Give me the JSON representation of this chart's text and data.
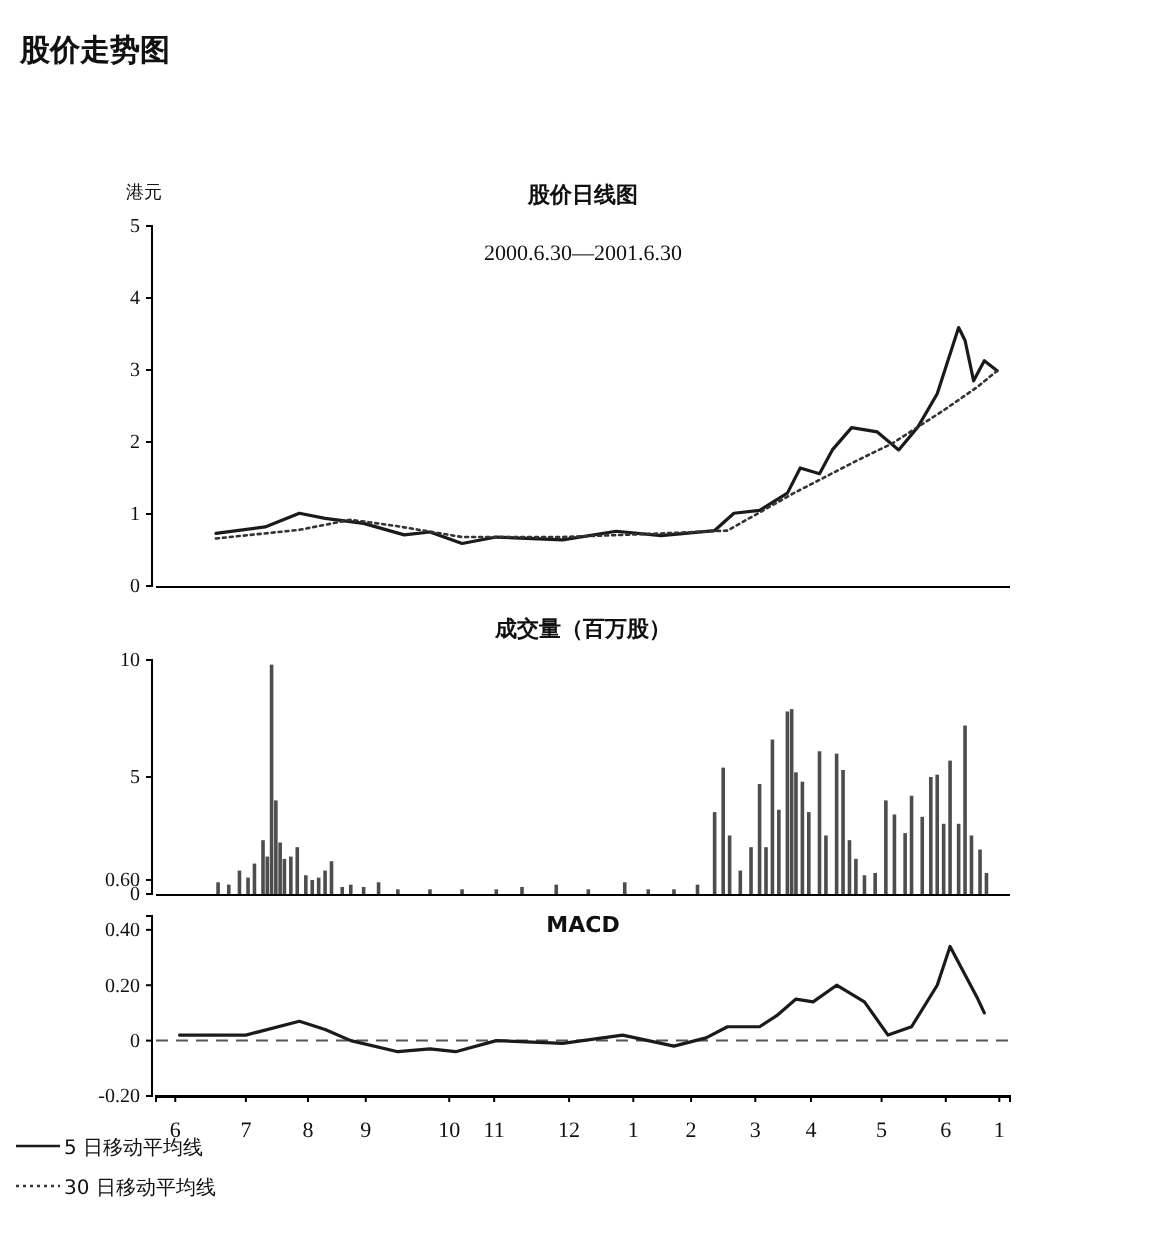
{
  "chart_data": [
    {
      "type": "line",
      "title": "股价日线图",
      "subtitle": "2000.6.30—2001.6.30",
      "ylabel": "港元",
      "annotations": [
        "股价走势图"
      ],
      "xlim": [
        "2000-06-02",
        "2001-07-06"
      ],
      "ylim": [
        0,
        5
      ],
      "yticks": [
        0,
        1,
        2,
        3,
        4,
        5
      ],
      "tick_labels": "y",
      "legend": "bottom left",
      "marker": "none",
      "grid": false,
      "series": [
        {
          "name": "5 日移动平均线",
          "color": "#1a1a1a",
          "line_style": "solid",
          "x": [
            "2000-06-30",
            "2000-07-23",
            "2000-08-08",
            "2000-08-20",
            "2000-09-07",
            "2000-09-26",
            "2000-10-08",
            "2000-10-23",
            "2000-11-08",
            "2000-12-09",
            "2001-01-03",
            "2001-01-24",
            "2001-02-18",
            "2001-02-27",
            "2001-03-11",
            "2001-03-24",
            "2001-03-30",
            "2001-04-08",
            "2001-04-14",
            "2001-04-23",
            "2001-05-05",
            "2001-05-15",
            "2001-05-24",
            "2001-06-02",
            "2001-06-12",
            "2001-06-15",
            "2001-06-19",
            "2001-06-24",
            "2001-06-30"
          ],
          "values": [
            0.73,
            0.82,
            1.01,
            0.94,
            0.87,
            0.71,
            0.75,
            0.59,
            0.68,
            0.64,
            0.76,
            0.7,
            0.77,
            1.01,
            1.05,
            1.29,
            1.64,
            1.56,
            1.89,
            2.2,
            2.14,
            1.89,
            2.21,
            2.67,
            3.59,
            3.41,
            2.85,
            3.13,
            2.99
          ]
        },
        {
          "name": "30 日移动平均线",
          "color": "#333333",
          "line_style": "dotted",
          "x": [
            "2000-06-30",
            "2000-08-08",
            "2000-09-01",
            "2000-09-23",
            "2000-10-23",
            "2000-12-09",
            "2001-01-24",
            "2001-02-24",
            "2001-03-27",
            "2001-04-26",
            "2001-05-12",
            "2001-06-05",
            "2001-06-21",
            "2001-06-30"
          ],
          "values": [
            0.66,
            0.78,
            0.92,
            0.83,
            0.68,
            0.68,
            0.73,
            0.77,
            1.29,
            1.75,
            1.98,
            2.44,
            2.77,
            2.99
          ]
        }
      ]
    },
    {
      "type": "bar",
      "title": "成交量（百万股）",
      "xlim": [
        "2000-06-02",
        "2001-07-06"
      ],
      "ylim": [
        0,
        10
      ],
      "yticks": [
        0,
        {
          "value": 0.6,
          "label": "0.60"
        },
        5,
        10
      ],
      "tick_labels": "y",
      "color": "#4d4d4d",
      "x": [
        "2000-07-01",
        "2000-07-06",
        "2000-07-11",
        "2000-07-15",
        "2000-07-18",
        "2000-07-22",
        "2000-07-24",
        "2000-07-26",
        "2000-07-28",
        "2000-07-30",
        "2000-08-01",
        "2000-08-04",
        "2000-08-07",
        "2000-08-11",
        "2000-08-14",
        "2000-08-17",
        "2000-08-20",
        "2000-08-23",
        "2000-08-28",
        "2000-09-01",
        "2000-09-07",
        "2000-09-14",
        "2000-09-23",
        "2000-10-08",
        "2000-10-23",
        "2000-11-08",
        "2000-11-20",
        "2000-12-06",
        "2000-12-21",
        "2001-01-07",
        "2001-01-18",
        "2001-01-30",
        "2001-02-10",
        "2001-02-18",
        "2001-02-22",
        "2001-02-25",
        "2001-03-02",
        "2001-03-07",
        "2001-03-11",
        "2001-03-14",
        "2001-03-17",
        "2001-03-20",
        "2001-03-24",
        "2001-03-26",
        "2001-03-28",
        "2001-03-31",
        "2001-04-03",
        "2001-04-08",
        "2001-04-11",
        "2001-04-16",
        "2001-04-19",
        "2001-04-22",
        "2001-04-25",
        "2001-04-29",
        "2001-05-04",
        "2001-05-09",
        "2001-05-13",
        "2001-05-18",
        "2001-05-21",
        "2001-05-26",
        "2001-05-30",
        "2001-06-02",
        "2001-06-05",
        "2001-06-08",
        "2001-06-12",
        "2001-06-15",
        "2001-06-18",
        "2001-06-22",
        "2001-06-25"
      ],
      "values": [
        0.5,
        0.4,
        1.0,
        0.7,
        1.3,
        2.3,
        1.6,
        9.8,
        4.0,
        2.2,
        1.5,
        1.6,
        2.0,
        0.8,
        0.6,
        0.7,
        1.0,
        1.4,
        0.3,
        0.4,
        0.3,
        0.5,
        0.2,
        0.2,
        0.2,
        0.2,
        0.3,
        0.4,
        0.2,
        0.5,
        0.2,
        0.2,
        0.4,
        3.5,
        5.4,
        2.5,
        1.0,
        2.0,
        4.7,
        2.0,
        6.6,
        3.6,
        7.8,
        7.9,
        5.2,
        4.8,
        3.5,
        6.1,
        2.5,
        6.0,
        5.3,
        2.3,
        1.5,
        0.8,
        0.9,
        4.0,
        3.4,
        2.6,
        4.2,
        3.3,
        5.0,
        5.1,
        3.0,
        5.7,
        3.0,
        7.2,
        2.5,
        1.9,
        0.9
      ]
    },
    {
      "type": "line",
      "title": "MACD",
      "xlim": [
        "2000-06-02",
        "2001-07-06"
      ],
      "ylim": [
        -0.2,
        0.45
      ],
      "yticks": [
        {
          "value": -0.2,
          "label": "-0.20"
        },
        0,
        {
          "value": 0.2,
          "label": "0.20"
        },
        {
          "value": 0.4,
          "label": "0.40"
        }
      ],
      "xticks": [
        {
          "value": "2000-06-11",
          "label": "6"
        },
        {
          "value": "2000-07-14",
          "label": "7"
        },
        {
          "value": "2000-08-12",
          "label": "8"
        },
        {
          "value": "2000-09-08",
          "label": "9"
        },
        {
          "value": "2000-10-17",
          "label": "10"
        },
        {
          "value": "2000-11-07",
          "label": "11"
        },
        {
          "value": "2000-12-12",
          "label": "12"
        },
        {
          "value": "2001-01-11",
          "label": "1"
        },
        {
          "value": "2001-02-07",
          "label": "2"
        },
        {
          "value": "2001-03-09",
          "label": "3"
        },
        {
          "value": "2001-04-04",
          "label": "4"
        },
        {
          "value": "2001-05-07",
          "label": "5"
        },
        {
          "value": "2001-06-06",
          "label": "6"
        },
        {
          "value": "2001-07-01",
          "label": "1"
        }
      ],
      "color": "#1a1a1a",
      "marker": "none",
      "x": [
        "2000-06-13",
        "2000-07-14",
        "2000-08-08",
        "2000-08-20",
        "2000-09-01",
        "2000-09-23",
        "2000-10-08",
        "2000-10-20",
        "2000-11-08",
        "2000-12-09",
        "2001-01-06",
        "2001-01-30",
        "2001-02-14",
        "2001-02-24",
        "2001-03-11",
        "2001-03-19",
        "2001-03-28",
        "2001-04-05",
        "2001-04-16",
        "2001-04-29",
        "2001-05-10",
        "2001-05-21",
        "2001-06-02",
        "2001-06-08",
        "2001-06-21",
        "2001-06-24"
      ],
      "values": [
        0.02,
        0.02,
        0.07,
        0.04,
        0.0,
        -0.04,
        -0.03,
        -0.04,
        0.0,
        -0.01,
        0.02,
        -0.02,
        0.01,
        0.05,
        0.05,
        0.09,
        0.15,
        0.14,
        0.2,
        0.14,
        0.02,
        0.05,
        0.2,
        0.34,
        0.15,
        0.1
      ],
      "ref_lines": [
        {
          "axis": "y",
          "value": 0,
          "line_style": "dashed",
          "color": "#555555"
        }
      ]
    }
  ]
}
